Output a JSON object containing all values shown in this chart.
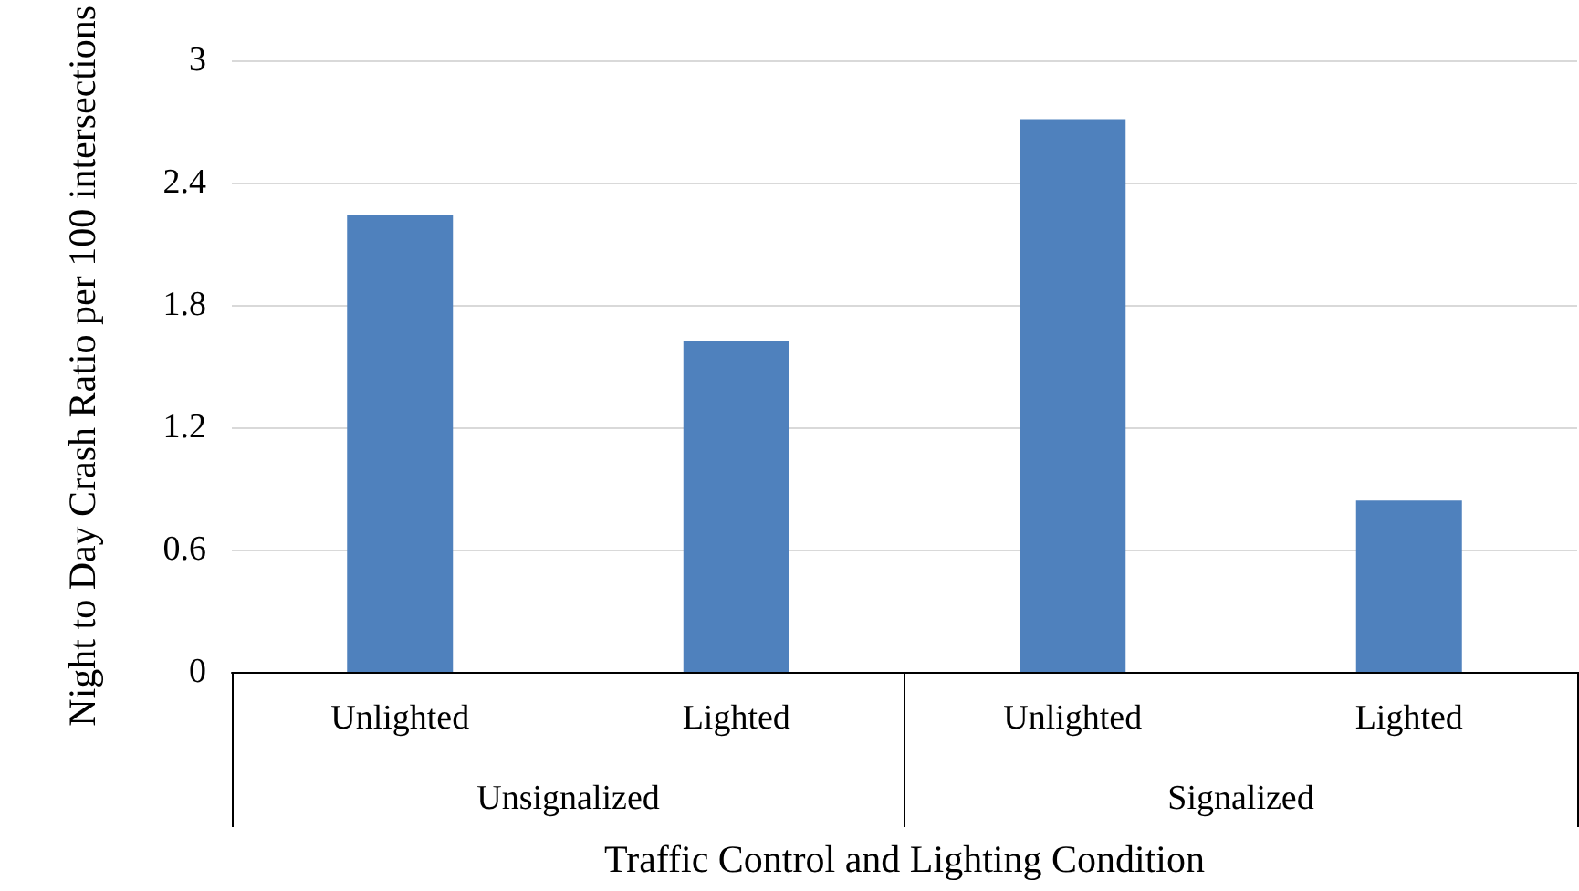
{
  "chart_data": {
    "type": "bar",
    "xlabel": "Traffic Control and Lighting Condition",
    "ylabel": "Night to Day Crash Ratio per 100 intersections",
    "categories": [
      "Unlighted",
      "Lighted",
      "Unlighted",
      "Lighted"
    ],
    "values": [
      2.24,
      1.62,
      2.71,
      0.84
    ],
    "color": "#4f81bd",
    "ylim": [
      0,
      3
    ],
    "yticks": [
      0,
      0.6,
      1.2,
      1.8,
      2.4,
      3
    ],
    "grid": "y",
    "annotations": [
      "Unsignalized",
      "Signalized"
    ]
  }
}
